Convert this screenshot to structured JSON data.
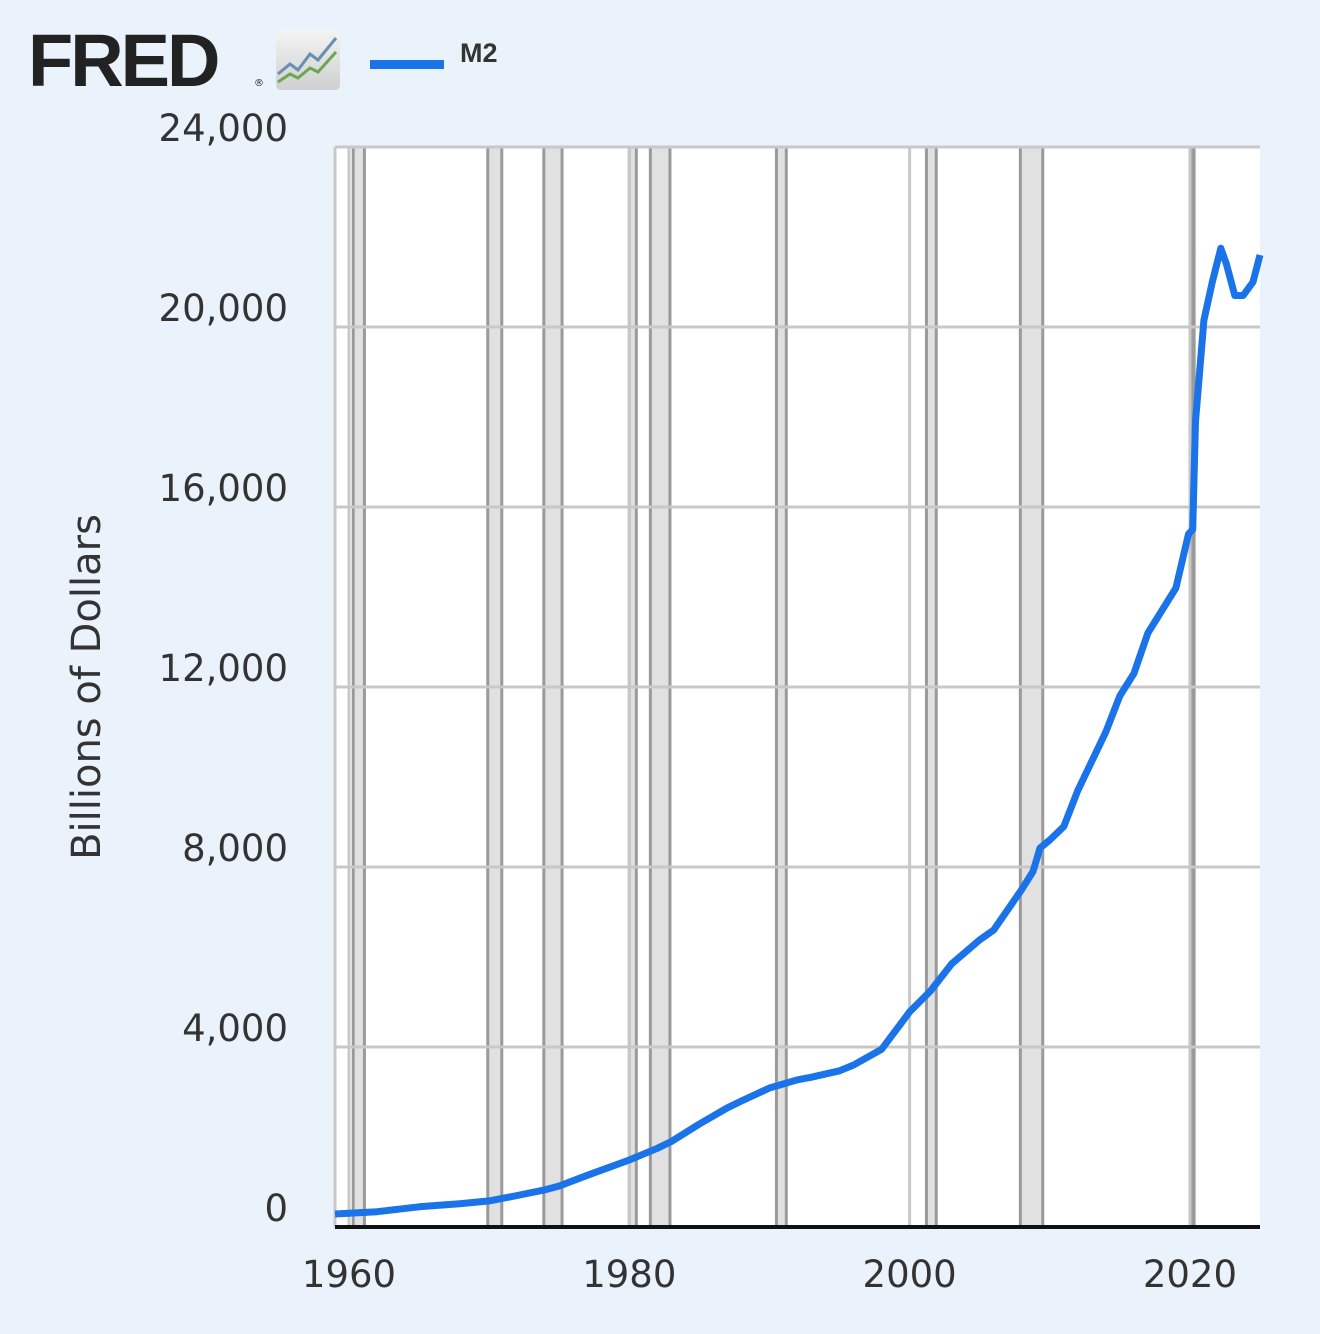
{
  "header": {
    "logo_text": "FRED",
    "logo_mark": "®"
  },
  "colors": {
    "series": "#1a73e8",
    "recession": "#e1e1e1",
    "grid": "#c8c8c8",
    "background": "#eaf3fb"
  },
  "chart_data": {
    "type": "line",
    "title": "",
    "xlabel": "",
    "ylabel": "Billions of Dollars",
    "xlim": [
      1959,
      2025
    ],
    "ylim": [
      0,
      24000
    ],
    "grid": true,
    "legend_placement": "top",
    "x_ticks": [
      "1960",
      "1980",
      "2000",
      "2020"
    ],
    "y_ticks": [
      "0",
      "4,000",
      "8,000",
      "12,000",
      "16,000",
      "20,000",
      "24,000"
    ],
    "recessions": [
      [
        1960.3,
        1961.1
      ],
      [
        1969.9,
        1970.9
      ],
      [
        1973.9,
        1975.2
      ],
      [
        1980.0,
        1980.5
      ],
      [
        1981.5,
        1982.9
      ],
      [
        1990.5,
        1991.2
      ],
      [
        2001.2,
        2001.9
      ],
      [
        2007.9,
        2009.5
      ],
      [
        2020.1,
        2020.3
      ]
    ],
    "series": [
      {
        "name": "M2",
        "x": [
          1959,
          1962,
          1965,
          1968,
          1970,
          1972,
          1973.9,
          1975,
          1977,
          1980,
          1982,
          1983,
          1985,
          1987,
          1988,
          1990,
          1992,
          1993,
          1995,
          1996,
          1998,
          2000,
          2001.5,
          2003,
          2005,
          2006,
          2008,
          2008.8,
          2009.3,
          2010,
          2011,
          2012,
          2014,
          2015,
          2016,
          2017,
          2018,
          2019,
          2019.9,
          2020.2,
          2020.4,
          2021,
          2021.6,
          2022.2,
          2022.6,
          2023.2,
          2023.8,
          2024.5,
          2025
        ],
        "y": [
          290,
          340,
          450,
          520,
          580,
          700,
          820,
          910,
          1150,
          1490,
          1750,
          1900,
          2290,
          2650,
          2800,
          3090,
          3270,
          3330,
          3470,
          3600,
          3950,
          4780,
          5250,
          5850,
          6380,
          6600,
          7500,
          7900,
          8420,
          8600,
          8900,
          9700,
          11000,
          11800,
          12300,
          13200,
          13700,
          14200,
          15400,
          15500,
          17900,
          20150,
          21000,
          21750,
          21400,
          20700,
          20700,
          21000,
          21600
        ]
      }
    ]
  }
}
